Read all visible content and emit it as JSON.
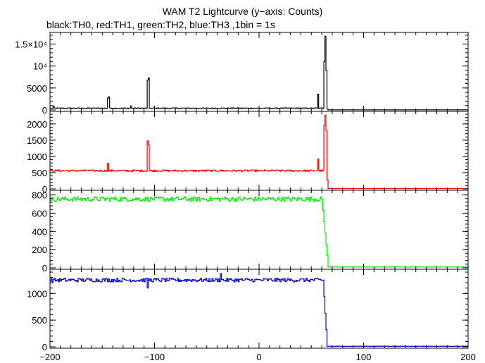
{
  "title": "WAM T2 Lightcurve (y−axis: Counts)",
  "subtitle": "black:TH0, red:TH1, green:TH2, blue:TH3 ,1bin = 1s",
  "chart_data": {
    "type": "line",
    "xlim": [
      -200,
      200
    ],
    "x_ticks": [
      -200,
      -100,
      0,
      100,
      200
    ],
    "x_tick_labels": [
      "−200",
      "−100",
      "0",
      "100",
      "200"
    ],
    "bin_seconds": 1,
    "panels": [
      {
        "name": "TH0",
        "color": "#000000",
        "ylim": [
          0,
          17000
        ],
        "y_ticks": [
          0,
          5000,
          10000,
          15000
        ],
        "y_tick_labels": [
          "0",
          "5000",
          "10⁴",
          "1.5×10⁴"
        ],
        "baseline": 400,
        "noise": 80,
        "peaks": [
          {
            "x": -197,
            "y": 900
          },
          {
            "x": -145,
            "y": 2700
          },
          {
            "x": -144,
            "y": 3000
          },
          {
            "x": -123,
            "y": 900
          },
          {
            "x": -107,
            "y": 6800
          },
          {
            "x": -106,
            "y": 7300
          },
          {
            "x": 56,
            "y": 3600
          },
          {
            "x": 62,
            "y": 11000
          },
          {
            "x": 63,
            "y": 16800
          },
          {
            "x": 64,
            "y": 9000
          }
        ],
        "drop": {
          "start": 64,
          "end": 66,
          "after": 20
        }
      },
      {
        "name": "TH1",
        "color": "#ff0000",
        "ylim": [
          0,
          2300
        ],
        "y_ticks": [
          0,
          500,
          1000,
          1500,
          2000
        ],
        "y_tick_labels": [
          "0",
          "500",
          "1000",
          "1500",
          "2000"
        ],
        "baseline": 560,
        "noise": 25,
        "peaks": [
          {
            "x": -145,
            "y": 790
          },
          {
            "x": -107,
            "y": 1480
          },
          {
            "x": -106,
            "y": 1350
          },
          {
            "x": 56,
            "y": 920
          },
          {
            "x": 62,
            "y": 1950
          },
          {
            "x": 63,
            "y": 2270
          },
          {
            "x": 64,
            "y": 1800
          }
        ],
        "drop": {
          "start": 64,
          "end": 66,
          "after": 10
        }
      },
      {
        "name": "TH2",
        "color": "#00ee00",
        "ylim": [
          0,
          820
        ],
        "y_ticks": [
          0,
          200,
          400,
          600,
          800
        ],
        "y_tick_labels": [
          "0",
          "200",
          "400",
          "600",
          "800"
        ],
        "baseline": 755,
        "noise": 25,
        "peaks": [],
        "drop": {
          "start": 60,
          "end": 66,
          "after": 10
        }
      },
      {
        "name": "TH3",
        "color": "#0000cc",
        "ylim": [
          0,
          1400
        ],
        "y_ticks": [
          0,
          500,
          1000
        ],
        "y_tick_labels": [
          "0",
          "500",
          "1000"
        ],
        "baseline": 1250,
        "noise": 35,
        "peaks": [
          {
            "x": -107,
            "y": 1100
          },
          {
            "x": -37,
            "y": 1370
          }
        ],
        "drop": {
          "start": 61,
          "end": 65,
          "after": 10
        }
      }
    ]
  }
}
